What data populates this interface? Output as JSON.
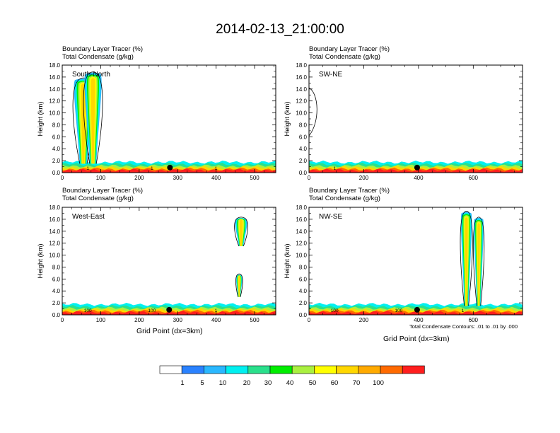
{
  "figure_title": "2014-02-13_21:00:00",
  "panel_title_line1": "Boundary Layer Tracer   (%)",
  "panel_title_line2": "Total Condensate   (g/kg)",
  "xlabel": "Grid Point (dx=3km)",
  "footnote": "Total Condensate Contours: .01 to .01 by .000",
  "colorbar": {
    "colors": [
      "#ffffff",
      "#2a82ff",
      "#2ab8ff",
      "#00f0f0",
      "#2ae08c",
      "#00ee00",
      "#aaf040",
      "#ffff00",
      "#ffd700",
      "#ffaa00",
      "#ff6a00",
      "#ff1e1e"
    ],
    "labels": [
      "1",
      "5",
      "10",
      "20",
      "30",
      "40",
      "50",
      "60",
      "70",
      "100"
    ]
  },
  "chart_data": [
    {
      "type": "heatmap",
      "label": "South-North",
      "title": [
        "Boundary Layer Tracer   (%)",
        "Total Condensate   (g/kg)"
      ],
      "ylabel": "Height (km)",
      "xlabel": "",
      "xlim": [
        0,
        555
      ],
      "ylim": [
        0,
        18
      ],
      "xticks": [
        0,
        100,
        200,
        300,
        400,
        500
      ],
      "yticks": [
        "0.0",
        "2.0",
        "4.0",
        "6.0",
        "8.0",
        "10.0",
        "12.0",
        "14.0",
        "16.0",
        "18.0"
      ],
      "marker_x": 280,
      "contour_labels": [
        "1",
        "1",
        "1"
      ],
      "plumes": [
        {
          "x": 55,
          "base": 1.5,
          "top": 15.5,
          "width": 55
        },
        {
          "x": 80,
          "base": 1.5,
          "top": 16.5,
          "width": 50
        }
      ]
    },
    {
      "type": "heatmap",
      "label": "SW-NE",
      "title": [
        "Boundary Layer Tracer   (%)",
        "Total Condensate   (g/kg)"
      ],
      "ylabel": "Height (km)",
      "xlabel": "",
      "xlim": [
        0,
        780
      ],
      "ylim": [
        0,
        18
      ],
      "xticks": [
        0,
        200,
        400,
        600
      ],
      "yticks": [
        "0.0",
        "2.0",
        "4.0",
        "6.0",
        "8.0",
        "10.0",
        "12.0",
        "14.0",
        "16.0",
        "18.0"
      ],
      "marker_x": 395,
      "contour_labels": [
        "1"
      ],
      "plumes": []
    },
    {
      "type": "heatmap",
      "label": "West-East",
      "title": [
        "Boundary Layer Tracer   (%)",
        "Total Condensate   (g/kg)"
      ],
      "ylabel": "Height (km)",
      "xlabel": "Grid Point (dx=3km)",
      "xlim": [
        0,
        555
      ],
      "ylim": [
        0,
        18
      ],
      "xticks": [
        0,
        100,
        200,
        300,
        400,
        500
      ],
      "yticks": [
        "0.0",
        "2.0",
        "4.0",
        "6.0",
        "8.0",
        "10.0",
        "12.0",
        "14.0",
        "16.0",
        "18.0"
      ],
      "marker_x": 278,
      "contour_labels": [
        "100",
        "100",
        "1"
      ],
      "plumes": [
        {
          "x": 460,
          "base": 3.0,
          "top": 6.5,
          "width": 18
        },
        {
          "x": 465,
          "base": 11.5,
          "top": 16.0,
          "width": 35
        }
      ]
    },
    {
      "type": "heatmap",
      "label": "NW-SE",
      "title": [
        "Boundary Layer Tracer   (%)",
        "Total Condensate   (g/kg)"
      ],
      "ylabel": "Height (km)",
      "xlabel": "Grid Point (dx=3km)",
      "xlim": [
        0,
        780
      ],
      "ylim": [
        0,
        18
      ],
      "xticks": [
        0,
        200,
        400,
        600
      ],
      "yticks": [
        "0.0",
        "2.0",
        "4.0",
        "6.0",
        "8.0",
        "10.0",
        "12.0",
        "14.0",
        "16.0",
        "18.0"
      ],
      "marker_x": 395,
      "contour_labels": [
        "100",
        "100",
        "1"
      ],
      "plumes": [
        {
          "x": 575,
          "base": 1.5,
          "top": 17.0,
          "width": 45
        },
        {
          "x": 620,
          "base": 1.5,
          "top": 16.0,
          "width": 40
        }
      ]
    }
  ]
}
